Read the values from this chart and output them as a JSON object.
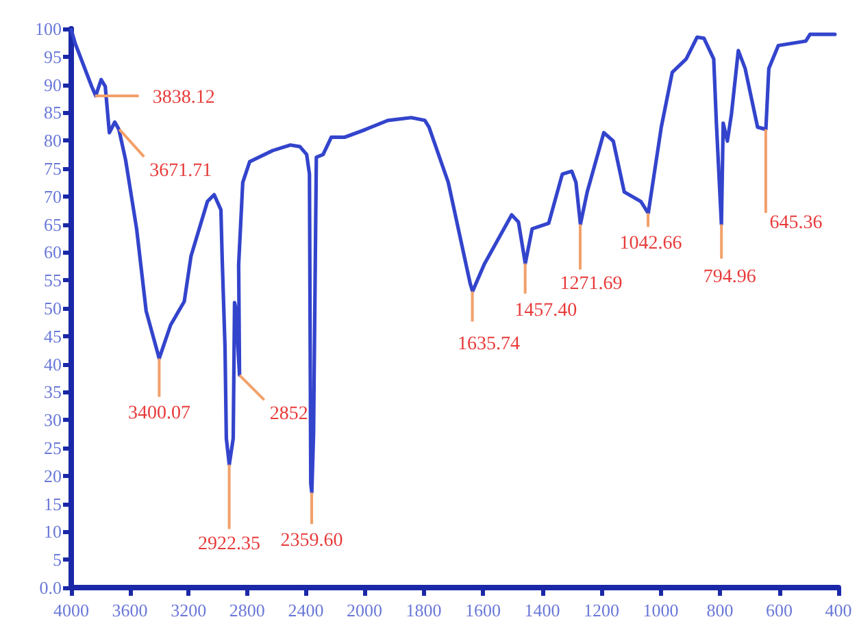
{
  "chart_data": [
    {
      "type": "line",
      "x": [
        4000,
        3972,
        3861,
        3833,
        3796,
        3768,
        3740,
        3703,
        3675,
        3629,
        3554,
        3489,
        3400,
        3322,
        3229,
        3183,
        3071,
        3025,
        2979,
        2970,
        2951,
        2942,
        2922,
        2895,
        2886,
        2878,
        2852,
        2858,
        2830,
        2783,
        2626,
        2505,
        2440,
        2394,
        2375,
        2366,
        2359,
        2347,
        2328,
        2282,
        2226,
        2133,
        2000
      ],
      "values": [
        99.8,
        97.3,
        89.7,
        88,
        90.9,
        89.7,
        81.4,
        83.3,
        82,
        76.5,
        64.2,
        49.5,
        41,
        47,
        51.2,
        59.3,
        69.1,
        70.3,
        67.6,
        58.6,
        43,
        26.7,
        22,
        26.7,
        51,
        50,
        38,
        57.8,
        72.5,
        76.2,
        78.2,
        79.2,
        78.9,
        77.5,
        74,
        18.6,
        17,
        27.5,
        77,
        77.5,
        80.6,
        80.6,
        81.9
      ],
      "color": "#3344cc",
      "xlim": [
        4000,
        2000
      ],
      "xticks": [
        4000,
        3600,
        3200,
        2800,
        2400,
        2000
      ],
      "ylim": [
        0,
        100
      ],
      "yticks": [
        {
          "value": 0,
          "label": "0.0"
        },
        5,
        10,
        15,
        20,
        25,
        30,
        35,
        40,
        45,
        50,
        55,
        60,
        65,
        70,
        75,
        80,
        85,
        90,
        95,
        100
      ],
      "grid": false,
      "marker": "none",
      "line_style": "solid",
      "annotations": [
        {
          "text": "3838.12",
          "x": 3838.12,
          "y": 88
        },
        {
          "text": "3671.71",
          "x": 3671.71,
          "y": 82
        },
        {
          "text": "3400.07",
          "x": 3400.07,
          "y": 41
        },
        {
          "text": "2922.35",
          "x": 2922.35,
          "y": 22
        },
        {
          "text": "2852",
          "x": 2852,
          "y": 38
        },
        {
          "text": "2359.60",
          "x": 2359.6,
          "y": 17
        }
      ]
    },
    {
      "type": "line",
      "x": [
        2000,
        1921,
        1842,
        1796,
        1782,
        1717,
        1643,
        1635,
        1596,
        1503,
        1480,
        1457,
        1434,
        1378,
        1332,
        1300,
        1286,
        1271,
        1248,
        1192,
        1160,
        1123,
        1067,
        1042,
        998,
        961,
        914,
        877,
        854,
        821,
        812,
        795,
        789,
        775,
        761,
        738,
        715,
        673,
        645,
        635,
        603,
        510,
        496,
        412
      ],
      "values": [
        81.9,
        83.6,
        84.1,
        83.6,
        82.4,
        72.5,
        54.4,
        53,
        57.8,
        66.7,
        65.4,
        58,
        64.2,
        65.2,
        74,
        74.5,
        72.5,
        65,
        70.8,
        81.4,
        79.9,
        70.8,
        69.1,
        67,
        82.4,
        92.2,
        94.6,
        98.5,
        98.3,
        94.6,
        83.1,
        65,
        83.1,
        79.9,
        84.8,
        96.1,
        92.9,
        82.4,
        82,
        92.9,
        97,
        97.8,
        99,
        99
      ],
      "color": "#3344cc",
      "xlim": [
        2000,
        400
      ],
      "xticks": [
        1800,
        1600,
        1400,
        1200,
        1000,
        800,
        600,
        400
      ],
      "ylim": [
        0,
        100
      ],
      "tick_labels": "x",
      "grid": false,
      "marker": "none",
      "line_style": "solid",
      "annotations": [
        {
          "text": "1635.74",
          "x": 1635.74,
          "y": 53
        },
        {
          "text": "1457.40",
          "x": 1457.4,
          "y": 58
        },
        {
          "text": "1271.69",
          "x": 1271.69,
          "y": 65
        },
        {
          "text": "1042.66",
          "x": 1042.66,
          "y": 67
        },
        {
          "text": "794.96",
          "x": 794.96,
          "y": 65
        },
        {
          "text": "645.36",
          "x": 645.36,
          "y": 82
        }
      ]
    }
  ]
}
